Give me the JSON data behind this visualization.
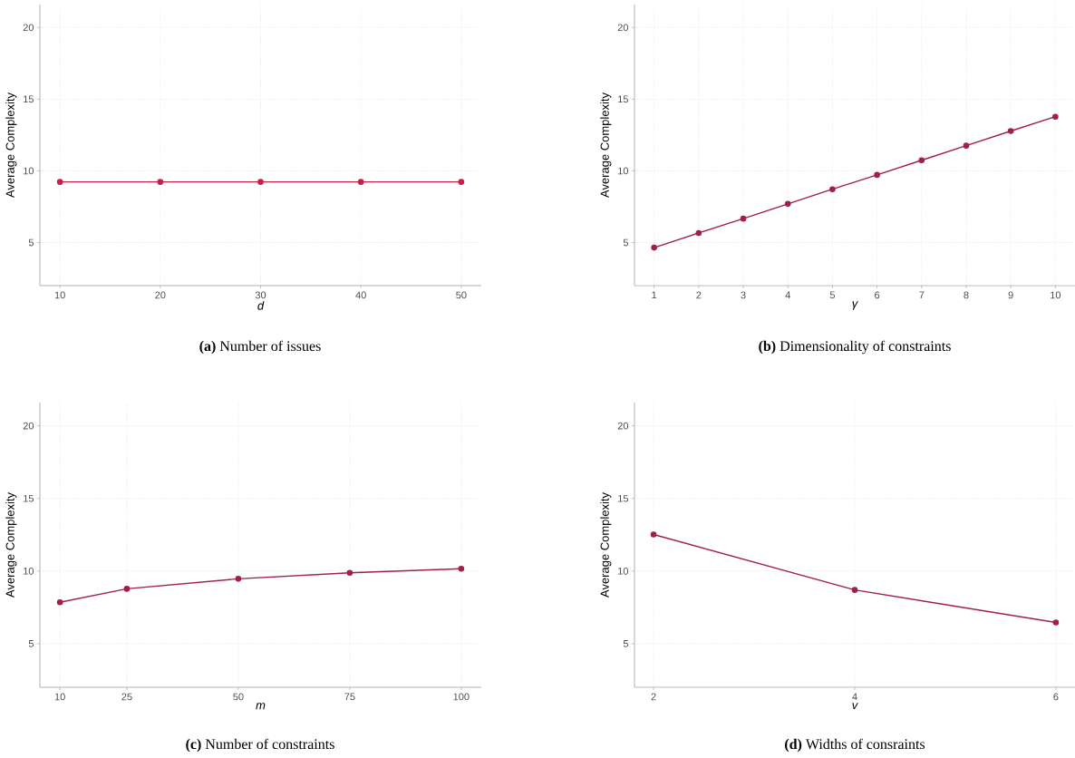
{
  "chart_data": [
    {
      "type": "line",
      "title": "**(a)** Number of issues",
      "xlabel": "d",
      "ylabel": "Average Complexity",
      "x": [
        10,
        20,
        30,
        40,
        50
      ],
      "values": [
        9.23,
        9.23,
        9.23,
        9.23,
        9.23
      ],
      "color": "#c4214c",
      "xlim": [
        8,
        52
      ],
      "ylim": [
        2,
        21.6
      ],
      "xticks": [
        10,
        20,
        30,
        40,
        50
      ],
      "yticks": [
        5,
        10,
        15,
        20
      ],
      "grid": true,
      "marker": "circle"
    },
    {
      "type": "line",
      "title": "**(b)** Dimensionality of constraints",
      "xlabel": "γ",
      "ylabel": "Average Complexity",
      "x": [
        1,
        2,
        3,
        4,
        5,
        6,
        7,
        8,
        9,
        10
      ],
      "values": [
        4.65,
        5.67,
        6.67,
        7.7,
        8.72,
        9.72,
        10.74,
        11.76,
        12.78,
        13.78
      ],
      "color": "#a21f47",
      "xlim": [
        0.56,
        10.44
      ],
      "ylim": [
        2,
        21.6
      ],
      "xticks": [
        1,
        2,
        3,
        4,
        5,
        6,
        7,
        8,
        9,
        10
      ],
      "yticks": [
        5,
        10,
        15,
        20
      ],
      "grid": true,
      "marker": "circle"
    },
    {
      "type": "line",
      "title": "**(c)** Number of constraints",
      "xlabel": "m",
      "ylabel": "Average Complexity",
      "x": [
        10,
        25,
        50,
        75,
        100
      ],
      "values": [
        7.85,
        8.78,
        9.47,
        9.88,
        10.16
      ],
      "color": "#a21f47",
      "xlim": [
        5.5,
        104.5
      ],
      "ylim": [
        2,
        21.6
      ],
      "xticks": [
        10,
        25,
        50,
        75,
        100
      ],
      "yticks": [
        5,
        10,
        15,
        20
      ],
      "grid": true,
      "marker": "circle"
    },
    {
      "type": "line",
      "title": "**(d)** Widths of consraints",
      "xlabel": "v",
      "ylabel": "Average Complexity",
      "x": [
        2,
        4,
        6
      ],
      "values": [
        12.52,
        8.7,
        6.46
      ],
      "color": "#a21f47",
      "xlim": [
        1.81,
        6.19
      ],
      "ylim": [
        2,
        21.6
      ],
      "xticks": [
        2,
        4,
        6
      ],
      "yticks": [
        5,
        10,
        15,
        20
      ],
      "grid": true,
      "marker": "circle"
    }
  ]
}
